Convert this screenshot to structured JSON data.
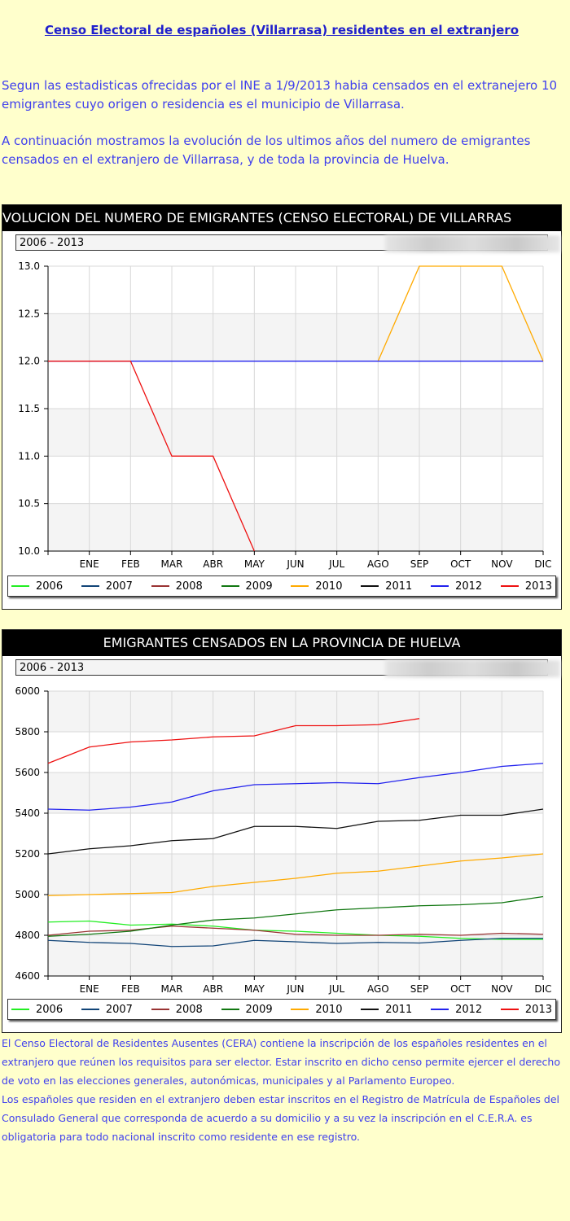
{
  "page_title": "Censo Electoral de españoles (Villarrasa) residentes en el extranjero",
  "intro": [
    "Segun las estadisticas ofrecidas por el INE a 1/9/2013 habia censados en el extranejero 10 emigrantes cuyo origen o residencia es el municipio de Villarrasa.",
    "A continuación mostramos la evolución de los ultimos años del numero de emigrantes censados en el extranjero de Villarrasa, y de toda la provincia de Huelva."
  ],
  "footer": [
    "El Censo Electoral de Residentes Ausentes (CERA) contiene la inscripción de los españoles residentes en el extranjero que reúnen los requisitos para ser elector. Estar inscrito en dicho censo permite ejercer el derecho de voto en las elecciones generales, autonómicas, municipales y al Parlamento Europeo.",
    "Los españoles que residen en el extranjero deben estar inscritos en el Registro de Matrícula de Españoles del Consulado General que corresponda de acuerdo a su domicilio y a su vez la inscripción en el C.E.R.A. es obligatoria para todo nacional inscrito como residente en ese registro."
  ],
  "chart_data": [
    {
      "type": "line",
      "title": "VOLUCION DEL NUMERO DE EMIGRANTES (CENSO ELECTORAL) DE VILLARRAS",
      "range_label": "2006 - 2013",
      "x_ticks": [
        "",
        "ENE",
        "FEB",
        "MAR",
        "ABR",
        "MAY",
        "JUN",
        "JUL",
        "AGO",
        "SEP",
        "OCT",
        "NOV",
        "DIC"
      ],
      "ylim": [
        10.0,
        13.0
      ],
      "y_ticks": [
        10.0,
        10.5,
        11.0,
        11.5,
        12.0,
        12.5,
        13.0
      ],
      "y_tick_labels": [
        "10.0",
        "10.5",
        "11.0",
        "11.5",
        "12.0",
        "12.5",
        "13.0"
      ],
      "grid": true,
      "legend_position": "bottom",
      "series": [
        {
          "name": "2006",
          "color": "#22ee22",
          "values": [
            null,
            null,
            null,
            null,
            null,
            null,
            null,
            null,
            null,
            null,
            null,
            null,
            null
          ]
        },
        {
          "name": "2007",
          "color": "#114477",
          "values": [
            null,
            null,
            null,
            null,
            null,
            null,
            null,
            null,
            null,
            null,
            null,
            null,
            null
          ]
        },
        {
          "name": "2008",
          "color": "#993333",
          "values": [
            null,
            null,
            null,
            null,
            null,
            null,
            null,
            null,
            null,
            null,
            null,
            null,
            null
          ]
        },
        {
          "name": "2009",
          "color": "#117711",
          "values": [
            null,
            null,
            null,
            null,
            null,
            null,
            null,
            null,
            null,
            null,
            null,
            null,
            null
          ]
        },
        {
          "name": "2010",
          "color": "#ffaa00",
          "values": [
            null,
            null,
            null,
            null,
            null,
            null,
            null,
            null,
            12,
            13,
            13,
            13,
            12
          ]
        },
        {
          "name": "2011",
          "color": "#111111",
          "values": [
            null,
            null,
            null,
            null,
            null,
            null,
            null,
            null,
            null,
            null,
            null,
            null,
            null
          ]
        },
        {
          "name": "2012",
          "color": "#2222ee",
          "values": [
            12,
            12,
            12,
            12,
            12,
            12,
            12,
            12,
            12,
            12,
            12,
            12,
            12
          ]
        },
        {
          "name": "2013",
          "color": "#ee1111",
          "values": [
            12,
            12,
            12,
            11,
            11,
            10,
            null,
            null,
            null,
            null,
            null,
            null,
            null
          ]
        }
      ]
    },
    {
      "type": "line",
      "title": "EMIGRANTES CENSADOS EN LA PROVINCIA DE HUELVA",
      "range_label": "2006 - 2013",
      "x_ticks": [
        "",
        "ENE",
        "FEB",
        "MAR",
        "ABR",
        "MAY",
        "JUN",
        "JUL",
        "AGO",
        "SEP",
        "OCT",
        "NOV",
        "DIC"
      ],
      "ylim": [
        4600,
        6000
      ],
      "y_ticks": [
        4600,
        4800,
        5000,
        5200,
        5400,
        5600,
        5800,
        6000
      ],
      "y_tick_labels": [
        "4600",
        "4800",
        "5000",
        "5200",
        "5400",
        "5600",
        "5800",
        "6000"
      ],
      "grid": true,
      "legend_position": "bottom",
      "series": [
        {
          "name": "2006",
          "color": "#22ee22",
          "values": [
            4865,
            4870,
            4850,
            4855,
            4845,
            4825,
            4820,
            4810,
            4800,
            4795,
            4785,
            4780,
            4780
          ]
        },
        {
          "name": "2007",
          "color": "#114477",
          "values": [
            4775,
            4765,
            4760,
            4745,
            4748,
            4775,
            4768,
            4760,
            4765,
            4762,
            4775,
            4785,
            4785
          ]
        },
        {
          "name": "2008",
          "color": "#993333",
          "values": [
            4800,
            4820,
            4825,
            4845,
            4835,
            4825,
            4805,
            4800,
            4800,
            4805,
            4800,
            4810,
            4805
          ]
        },
        {
          "name": "2009",
          "color": "#117711",
          "values": [
            4795,
            4805,
            4820,
            4850,
            4875,
            4885,
            4905,
            4925,
            4935,
            4945,
            4950,
            4960,
            4990
          ]
        },
        {
          "name": "2010",
          "color": "#ffaa00",
          "values": [
            4995,
            5000,
            5005,
            5010,
            5040,
            5060,
            5080,
            5105,
            5115,
            5140,
            5165,
            5180,
            5200
          ]
        },
        {
          "name": "2011",
          "color": "#111111",
          "values": [
            5200,
            5225,
            5240,
            5265,
            5275,
            5335,
            5335,
            5325,
            5360,
            5365,
            5390,
            5390,
            5420
          ]
        },
        {
          "name": "2012",
          "color": "#2222ee",
          "values": [
            5420,
            5415,
            5430,
            5455,
            5510,
            5540,
            5545,
            5550,
            5545,
            5575,
            5600,
            5630,
            5645
          ]
        },
        {
          "name": "2013",
          "color": "#ee1111",
          "values": [
            5645,
            5725,
            5750,
            5760,
            5775,
            5780,
            5830,
            5830,
            5835,
            5865,
            null,
            null,
            null
          ]
        }
      ]
    }
  ]
}
